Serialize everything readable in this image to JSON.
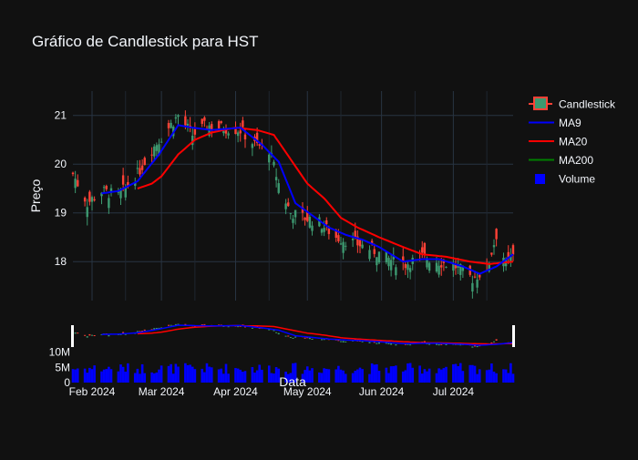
{
  "chart_data": {
    "type": "candlestick",
    "title": "Gráfico de Candlestick para HST",
    "xlabel": "Data",
    "ylabel": "Preço",
    "ylim_price": [
      17.2,
      21.5
    ],
    "ylim_volume": [
      0,
      15000000
    ],
    "yticks_price": [
      "21",
      "20",
      "19",
      "18"
    ],
    "yticks_price_values": [
      21,
      20,
      19,
      18
    ],
    "yticks_volume": [
      "10M",
      "5M",
      "0"
    ],
    "yticks_volume_values": [
      10000000,
      5000000,
      0
    ],
    "xticks": [
      "Feb 2024",
      "Mar 2024",
      "Apr 2024",
      "May 2024",
      "Jun 2024",
      "Jul 2024"
    ],
    "date_start": "2024-01-24",
    "date_end": "2024-07-26",
    "legend_position": "top-right",
    "legend": [
      {
        "name": "Candlestick",
        "key": "candle"
      },
      {
        "name": "MA9",
        "key": "ma9"
      },
      {
        "name": "MA20",
        "key": "ma20"
      },
      {
        "name": "MA200",
        "key": "ma200"
      },
      {
        "name": "Volume",
        "key": "volume"
      }
    ],
    "colors": {
      "increasing": "#3d9970",
      "decreasing": "#ff4136",
      "ma9": "#0000ff",
      "ma20": "#ff0000",
      "ma200": "#008000",
      "volume": "#0000ff",
      "grid": "#283442",
      "background": "#111111"
    },
    "close_keypoints": [
      [
        "2024-01-24",
        19.8
      ],
      [
        "2024-01-30",
        19.2
      ],
      [
        "2024-02-05",
        19.45
      ],
      [
        "2024-02-12",
        19.35
      ],
      [
        "2024-02-20",
        19.8
      ],
      [
        "2024-02-26",
        20.3
      ],
      [
        "2024-03-04",
        20.75
      ],
      [
        "2024-03-08",
        21.0
      ],
      [
        "2024-03-14",
        20.6
      ],
      [
        "2024-03-20",
        20.8
      ],
      [
        "2024-03-26",
        20.75
      ],
      [
        "2024-04-03",
        20.7
      ],
      [
        "2024-04-09",
        20.4
      ],
      [
        "2024-04-15",
        20.3
      ],
      [
        "2024-04-19",
        19.6
      ],
      [
        "2024-04-24",
        19.0
      ],
      [
        "2024-04-30",
        18.9
      ],
      [
        "2024-05-06",
        18.8
      ],
      [
        "2024-05-13",
        18.5
      ],
      [
        "2024-05-20",
        18.4
      ],
      [
        "2024-05-28",
        18.25
      ],
      [
        "2024-06-04",
        18.05
      ],
      [
        "2024-06-11",
        17.95
      ],
      [
        "2024-06-18",
        18.1
      ],
      [
        "2024-06-25",
        18.0
      ],
      [
        "2024-07-02",
        17.9
      ],
      [
        "2024-07-09",
        17.65
      ],
      [
        "2024-07-15",
        17.85
      ],
      [
        "2024-07-19",
        18.55
      ],
      [
        "2024-07-23",
        17.95
      ],
      [
        "2024-07-26",
        18.1
      ]
    ],
    "ma9_keypoints": [
      [
        "2024-02-05",
        19.4
      ],
      [
        "2024-02-12",
        19.45
      ],
      [
        "2024-02-20",
        19.65
      ],
      [
        "2024-02-29",
        20.2
      ],
      [
        "2024-03-08",
        20.8
      ],
      [
        "2024-03-14",
        20.75
      ],
      [
        "2024-03-22",
        20.7
      ],
      [
        "2024-04-03",
        20.75
      ],
      [
        "2024-04-12",
        20.4
      ],
      [
        "2024-04-19",
        20.05
      ],
      [
        "2024-04-26",
        19.2
      ],
      [
        "2024-05-03",
        18.95
      ],
      [
        "2024-05-10",
        18.7
      ],
      [
        "2024-05-17",
        18.55
      ],
      [
        "2024-05-24",
        18.45
      ],
      [
        "2024-05-31",
        18.3
      ],
      [
        "2024-06-10",
        18.0
      ],
      [
        "2024-06-18",
        18.05
      ],
      [
        "2024-06-25",
        18.05
      ],
      [
        "2024-07-05",
        17.9
      ],
      [
        "2024-07-12",
        17.75
      ],
      [
        "2024-07-19",
        17.9
      ],
      [
        "2024-07-26",
        18.15
      ]
    ],
    "ma20_keypoints": [
      [
        "2024-02-20",
        19.5
      ],
      [
        "2024-02-26",
        19.6
      ],
      [
        "2024-03-01",
        19.75
      ],
      [
        "2024-03-08",
        20.2
      ],
      [
        "2024-03-15",
        20.5
      ],
      [
        "2024-03-22",
        20.65
      ],
      [
        "2024-04-01",
        20.75
      ],
      [
        "2024-04-10",
        20.7
      ],
      [
        "2024-04-17",
        20.6
      ],
      [
        "2024-04-24",
        20.1
      ],
      [
        "2024-05-01",
        19.6
      ],
      [
        "2024-05-08",
        19.3
      ],
      [
        "2024-05-15",
        18.9
      ],
      [
        "2024-05-22",
        18.7
      ],
      [
        "2024-05-31",
        18.5
      ],
      [
        "2024-06-10",
        18.3
      ],
      [
        "2024-06-18",
        18.15
      ],
      [
        "2024-06-28",
        18.1
      ],
      [
        "2024-07-08",
        18.0
      ],
      [
        "2024-07-16",
        17.95
      ],
      [
        "2024-07-26",
        18.0
      ]
    ],
    "volume_range": [
      2800000,
      6500000
    ]
  }
}
